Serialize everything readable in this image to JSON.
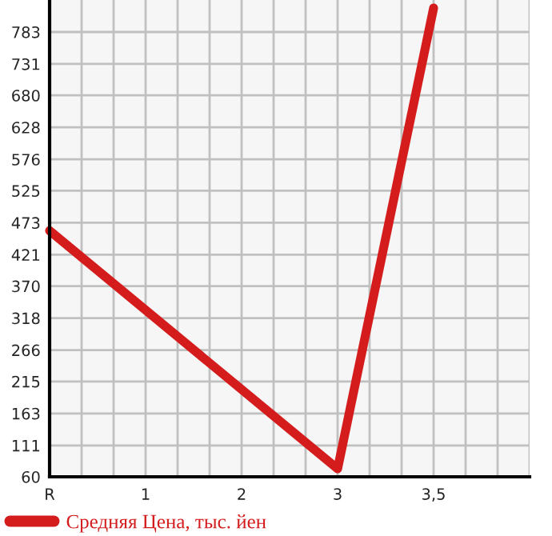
{
  "chart_data": {
    "type": "line",
    "categories": [
      "R",
      "1",
      "2",
      "3",
      "3,5"
    ],
    "series": [
      {
        "name": "Средняя Цена, тыс. йен",
        "color": "#d41c1c",
        "values": [
          460,
          null,
          null,
          73,
          822
        ]
      }
    ],
    "ylim": [
      60,
      835
    ],
    "yticks": [
      60,
      111,
      163,
      215,
      266,
      318,
      370,
      421,
      473,
      525,
      576,
      628,
      680,
      731,
      783
    ],
    "grid": true,
    "legend": "bottom left",
    "marker": "none",
    "line_style": "solid"
  }
}
